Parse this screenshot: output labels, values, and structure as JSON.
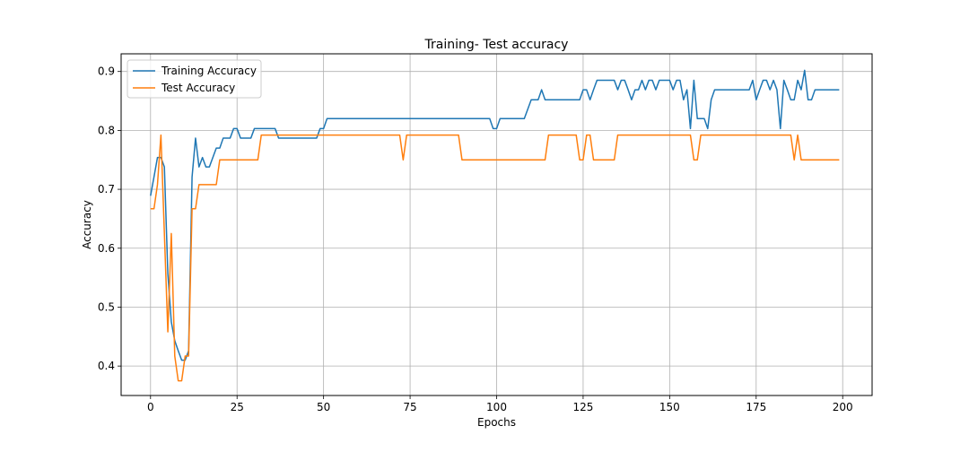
{
  "chart_data": {
    "type": "line",
    "title": "Training- Test accuracy",
    "xlabel": "Epochs",
    "ylabel": "Accuracy",
    "xlim": [
      -8.5,
      208.5
    ],
    "ylim": [
      0.35,
      0.93
    ],
    "xticks": [
      0,
      25,
      50,
      75,
      100,
      125,
      150,
      175,
      200
    ],
    "yticks": [
      0.4,
      0.5,
      0.6,
      0.7,
      0.8,
      0.9
    ],
    "grid": true,
    "legend_position": "top-left",
    "series": [
      {
        "name": "Training Accuracy",
        "color": "#1f77b4",
        "points": [
          [
            0,
            0.689
          ],
          [
            1,
            0.721
          ],
          [
            2,
            0.754
          ],
          [
            3,
            0.754
          ],
          [
            4,
            0.738
          ],
          [
            5,
            0.557
          ],
          [
            6,
            0.475
          ],
          [
            7,
            0.443
          ],
          [
            8,
            0.426
          ],
          [
            9,
            0.41
          ],
          [
            10,
            0.41
          ],
          [
            11,
            0.426
          ],
          [
            12,
            0.721
          ],
          [
            13,
            0.787
          ],
          [
            14,
            0.738
          ],
          [
            15,
            0.754
          ],
          [
            16,
            0.738
          ],
          [
            17,
            0.738
          ],
          [
            18,
            0.754
          ],
          [
            19,
            0.77
          ],
          [
            20,
            0.77
          ],
          [
            21,
            0.787
          ],
          [
            22,
            0.787
          ],
          [
            23,
            0.787
          ],
          [
            24,
            0.803
          ],
          [
            25,
            0.803
          ],
          [
            26,
            0.787
          ],
          [
            27,
            0.787
          ],
          [
            28,
            0.787
          ],
          [
            29,
            0.787
          ],
          [
            30,
            0.803
          ],
          [
            36,
            0.803
          ],
          [
            37,
            0.787
          ],
          [
            48,
            0.787
          ],
          [
            49,
            0.803
          ],
          [
            50,
            0.803
          ],
          [
            51,
            0.82
          ],
          [
            98,
            0.82
          ],
          [
            99,
            0.803
          ],
          [
            100,
            0.803
          ],
          [
            101,
            0.82
          ],
          [
            108,
            0.82
          ],
          [
            110,
            0.852
          ],
          [
            111,
            0.852
          ],
          [
            112,
            0.852
          ],
          [
            113,
            0.869
          ],
          [
            114,
            0.852
          ],
          [
            124,
            0.852
          ],
          [
            125,
            0.869
          ],
          [
            126,
            0.869
          ],
          [
            127,
            0.852
          ],
          [
            128,
            0.869
          ],
          [
            129,
            0.885
          ],
          [
            134,
            0.885
          ],
          [
            135,
            0.869
          ],
          [
            136,
            0.885
          ],
          [
            137,
            0.885
          ],
          [
            138,
            0.869
          ],
          [
            139,
            0.852
          ],
          [
            140,
            0.869
          ],
          [
            141,
            0.869
          ],
          [
            142,
            0.885
          ],
          [
            143,
            0.869
          ],
          [
            144,
            0.885
          ],
          [
            145,
            0.885
          ],
          [
            146,
            0.869
          ],
          [
            147,
            0.885
          ],
          [
            150,
            0.885
          ],
          [
            151,
            0.869
          ],
          [
            152,
            0.885
          ],
          [
            153,
            0.885
          ],
          [
            154,
            0.852
          ],
          [
            155,
            0.869
          ],
          [
            156,
            0.803
          ],
          [
            157,
            0.885
          ],
          [
            158,
            0.82
          ],
          [
            159,
            0.82
          ],
          [
            160,
            0.82
          ],
          [
            161,
            0.803
          ],
          [
            162,
            0.852
          ],
          [
            163,
            0.869
          ],
          [
            173,
            0.869
          ],
          [
            174,
            0.885
          ],
          [
            175,
            0.852
          ],
          [
            176,
            0.869
          ],
          [
            177,
            0.885
          ],
          [
            178,
            0.885
          ],
          [
            179,
            0.869
          ],
          [
            180,
            0.885
          ],
          [
            181,
            0.869
          ],
          [
            182,
            0.803
          ],
          [
            183,
            0.885
          ],
          [
            184,
            0.869
          ],
          [
            185,
            0.852
          ],
          [
            186,
            0.852
          ],
          [
            187,
            0.885
          ],
          [
            188,
            0.869
          ],
          [
            189,
            0.902
          ],
          [
            190,
            0.852
          ],
          [
            191,
            0.852
          ],
          [
            192,
            0.869
          ],
          [
            199,
            0.869
          ]
        ]
      },
      {
        "name": "Test Accuracy",
        "color": "#ff7f0e",
        "points": [
          [
            0,
            0.667
          ],
          [
            1,
            0.667
          ],
          [
            2,
            0.708
          ],
          [
            3,
            0.792
          ],
          [
            4,
            0.625
          ],
          [
            5,
            0.458
          ],
          [
            6,
            0.625
          ],
          [
            7,
            0.417
          ],
          [
            8,
            0.375
          ],
          [
            9,
            0.375
          ],
          [
            10,
            0.417
          ],
          [
            11,
            0.417
          ],
          [
            12,
            0.667
          ],
          [
            13,
            0.667
          ],
          [
            14,
            0.708
          ],
          [
            19,
            0.708
          ],
          [
            20,
            0.75
          ],
          [
            31,
            0.75
          ],
          [
            32,
            0.792
          ],
          [
            72,
            0.792
          ],
          [
            73,
            0.75
          ],
          [
            74,
            0.792
          ],
          [
            89,
            0.792
          ],
          [
            90,
            0.75
          ],
          [
            114,
            0.75
          ],
          [
            115,
            0.792
          ],
          [
            123,
            0.792
          ],
          [
            124,
            0.75
          ],
          [
            125,
            0.75
          ],
          [
            126,
            0.792
          ],
          [
            127,
            0.792
          ],
          [
            128,
            0.75
          ],
          [
            134,
            0.75
          ],
          [
            135,
            0.792
          ],
          [
            156,
            0.792
          ],
          [
            157,
            0.75
          ],
          [
            158,
            0.75
          ],
          [
            159,
            0.792
          ],
          [
            185,
            0.792
          ],
          [
            186,
            0.75
          ],
          [
            187,
            0.792
          ],
          [
            188,
            0.75
          ],
          [
            199,
            0.75
          ]
        ]
      }
    ]
  }
}
